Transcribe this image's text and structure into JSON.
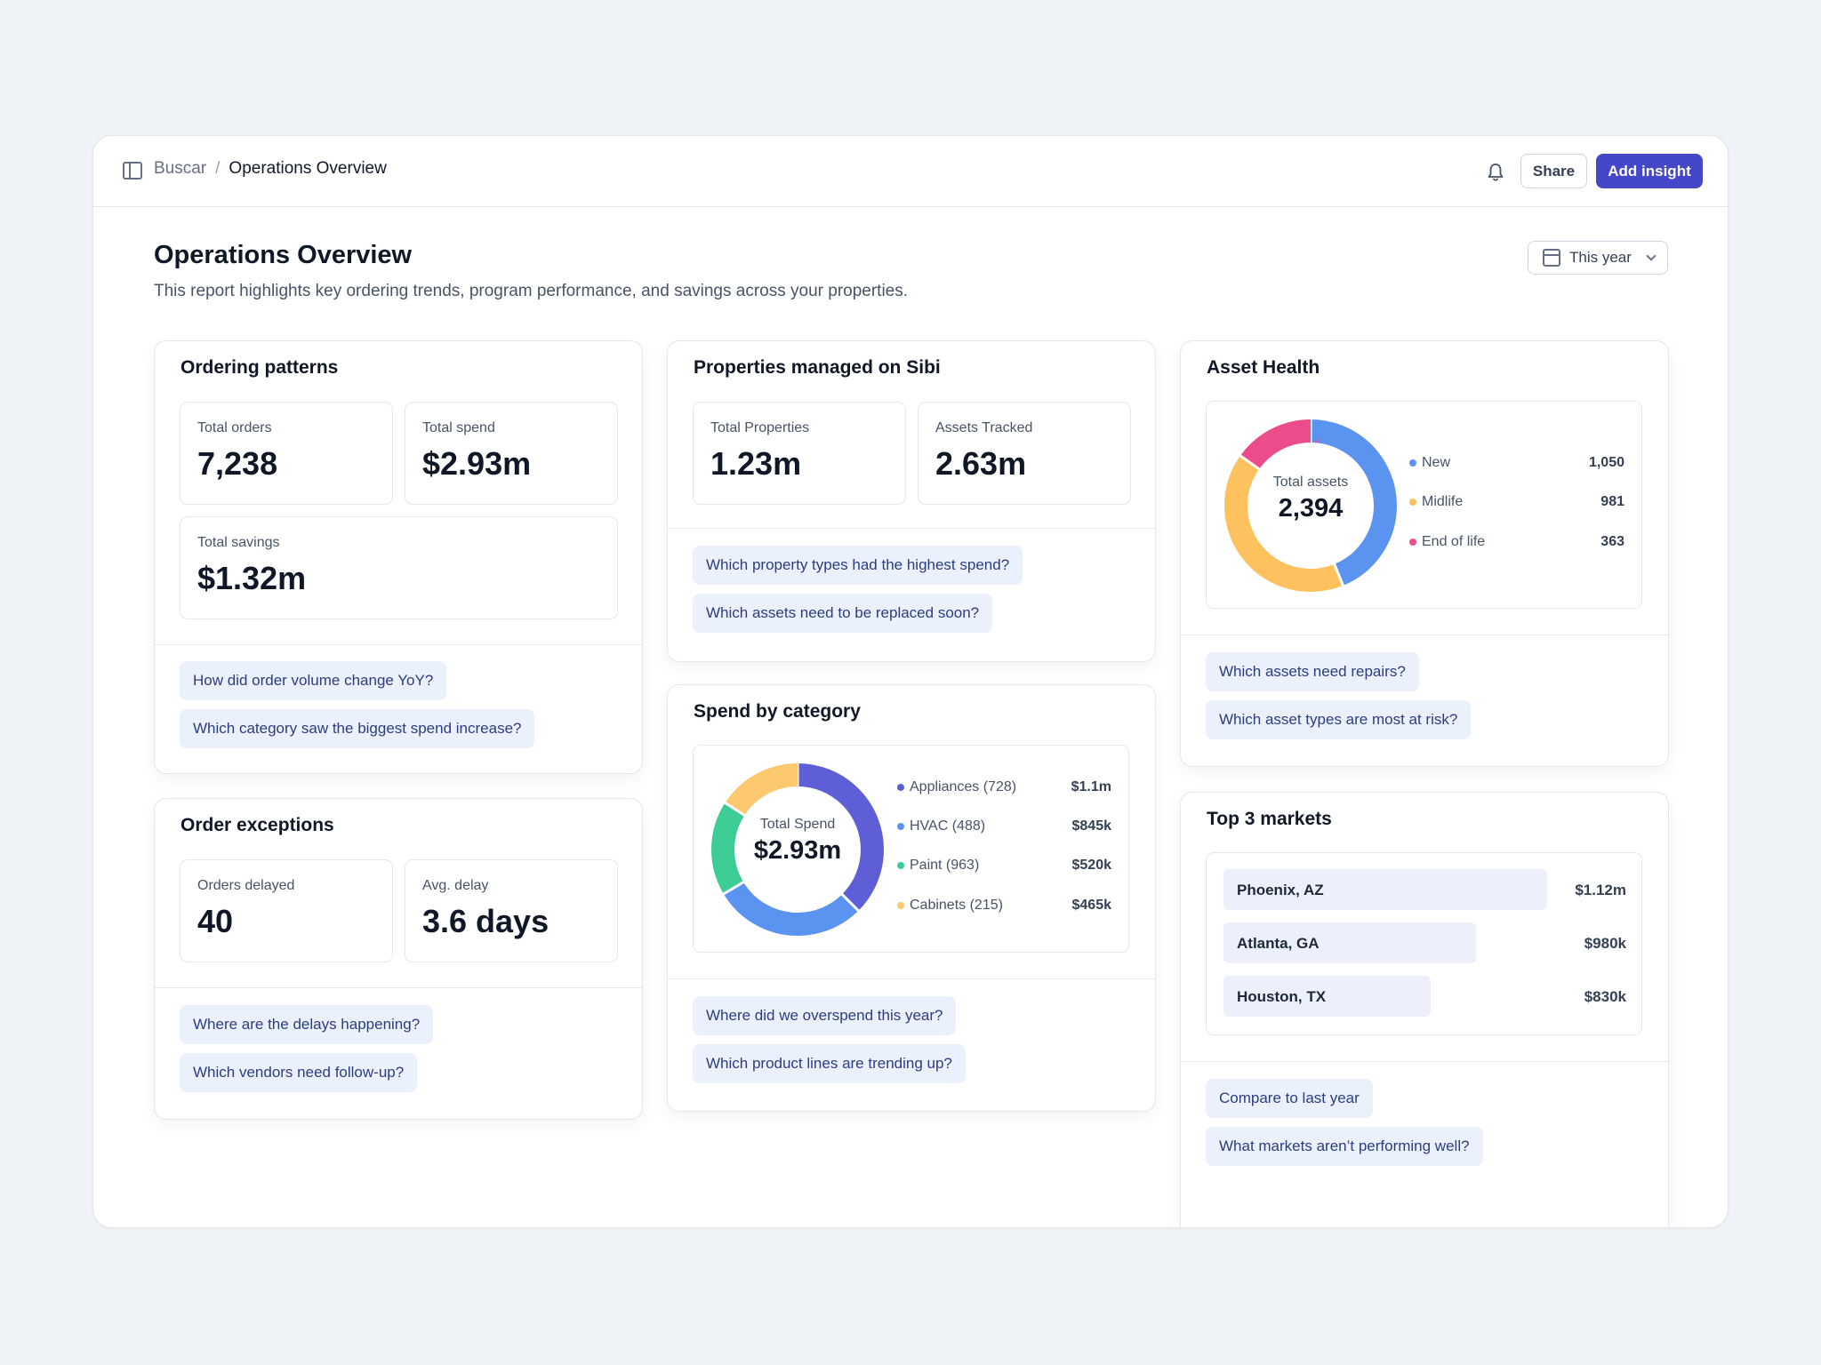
{
  "topbar": {
    "app_name": "Buscar",
    "separator": "/",
    "current_page": "Operations Overview",
    "share_label": "Share",
    "add_insight_label": "Add insight"
  },
  "header": {
    "title": "Operations Overview",
    "subtitle": "This report highlights key ordering trends, program performance, and savings across your properties.",
    "date_range": "This year"
  },
  "ordering_patterns": {
    "title": "Ordering patterns",
    "stats": [
      {
        "label": "Total orders",
        "value": "7,238"
      },
      {
        "label": "Total spend",
        "value": "$2.93m"
      },
      {
        "label": "Total savings",
        "value": "$1.32m"
      }
    ],
    "questions": [
      "How did order volume change YoY?",
      "Which category saw the biggest spend increase?"
    ]
  },
  "order_exceptions": {
    "title": "Order exceptions",
    "stats": [
      {
        "label": "Orders delayed",
        "value": "40"
      },
      {
        "label": "Avg. delay",
        "value": "3.6 days"
      }
    ],
    "questions": [
      "Where are the delays happening?",
      "Which vendors need follow-up?"
    ]
  },
  "properties": {
    "title": "Properties managed on Sibi",
    "stats": [
      {
        "label": "Total Properties",
        "value": "1.23m"
      },
      {
        "label": "Assets Tracked",
        "value": "2.63m"
      }
    ],
    "questions": [
      "Which property types had the highest spend?",
      "Which assets need to be replaced soon?"
    ]
  },
  "spend_by_category": {
    "title": "Spend by category",
    "center_label": "Total Spend",
    "center_value": "$2.93m",
    "legend": [
      {
        "name": "Appliances (728)",
        "value": "$1.1m"
      },
      {
        "name": "HVAC (488)",
        "value": "$845k"
      },
      {
        "name": "Paint (963)",
        "value": "$520k"
      },
      {
        "name": "Cabinets (215)",
        "value": "$465k"
      }
    ],
    "questions": [
      "Where did we overspend this year?",
      "Which product lines are trending up?"
    ]
  },
  "asset_health": {
    "title": "Asset Health",
    "center_label": "Total assets",
    "center_value": "2,394",
    "legend": [
      {
        "name": "New",
        "value": "1,050"
      },
      {
        "name": "Midlife",
        "value": "981"
      },
      {
        "name": "End of life",
        "value": "363"
      }
    ],
    "questions": [
      "Which assets need repairs?",
      "Which asset types are most at risk?"
    ]
  },
  "top_markets": {
    "title": "Top 3 markets",
    "markets": [
      {
        "name": "Phoenix, AZ",
        "value": "$1.12m",
        "amount": 1.12
      },
      {
        "name": "Atlanta, GA",
        "value": "$980k",
        "amount": 0.98
      },
      {
        "name": "Houston, TX",
        "value": "$830k",
        "amount": 0.83
      }
    ],
    "questions": [
      "Compare to last year",
      "What markets aren’t performing well?"
    ]
  },
  "chart_data": [
    {
      "type": "pie",
      "title": "Spend by category",
      "categories": [
        "Appliances (728)",
        "HVAC (488)",
        "Paint (963)",
        "Cabinets (215)"
      ],
      "values": [
        1100000,
        845000,
        520000,
        465000
      ],
      "colors": [
        "#5e5ed6",
        "#5b93f0",
        "#3dcc94",
        "#fdc96f"
      ]
    },
    {
      "type": "pie",
      "title": "Asset Health",
      "categories": [
        "New",
        "Midlife",
        "End of life"
      ],
      "values": [
        1050,
        981,
        363
      ],
      "colors": [
        "#5b93f0",
        "#fdc25e",
        "#ec4d8a"
      ]
    }
  ]
}
